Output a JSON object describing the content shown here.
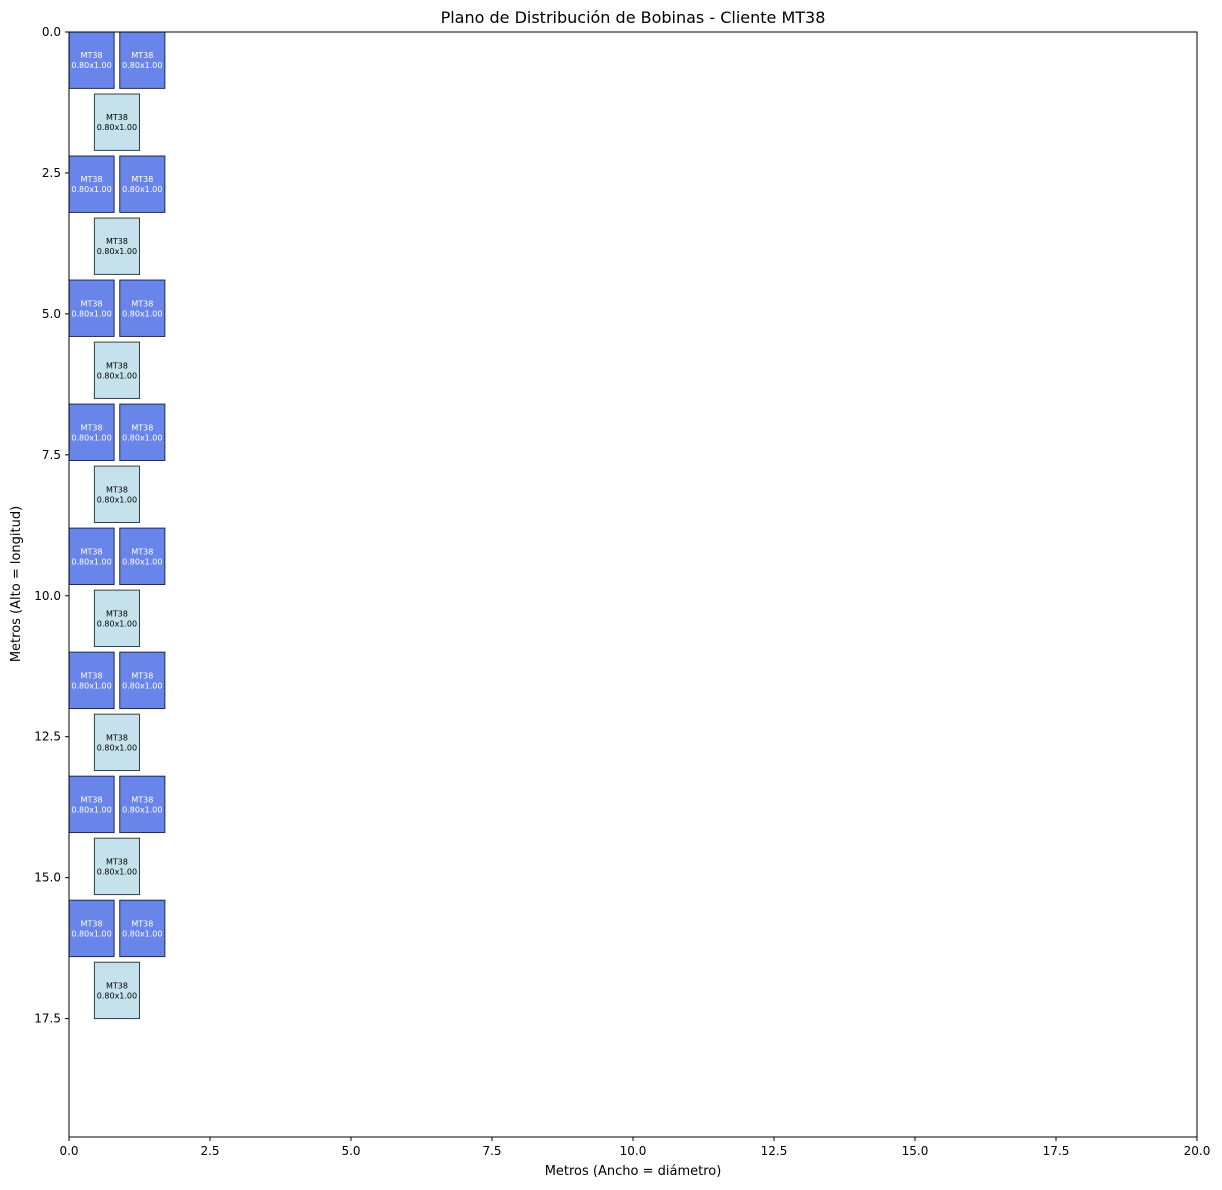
{
  "chart_data": {
    "type": "heatmap",
    "title": "Plano de Distribución de Bobinas - Cliente MT38",
    "xlabel": "Metros (Ancho = diámetro)",
    "ylabel": "Metros (Alto = longitud)",
    "xlim": [
      0,
      20
    ],
    "ylim": [
      19.6,
      0
    ],
    "y_inverted": true,
    "grid": false,
    "xticks": [
      "0.0",
      "2.5",
      "5.0",
      "7.5",
      "10.0",
      "12.5",
      "15.0",
      "17.5",
      "20.0"
    ],
    "yticks": [
      "0.0",
      "2.5",
      "5.0",
      "7.5",
      "10.0",
      "12.5",
      "15.0",
      "17.5"
    ],
    "colors": {
      "pair_fill": "#6985e9",
      "single_fill": "#c5e2ec",
      "pair_text": "#ffffff",
      "single_text": "#000000"
    },
    "rectangles": [
      {
        "x": 0.0,
        "y": 0.0,
        "w": 0.8,
        "h": 1.0,
        "style": "pair",
        "label1": "MT38",
        "label2": "0.80x1.00"
      },
      {
        "x": 0.9,
        "y": 0.0,
        "w": 0.8,
        "h": 1.0,
        "style": "pair",
        "label1": "MT38",
        "label2": "0.80x1.00"
      },
      {
        "x": 0.45,
        "y": 1.1,
        "w": 0.8,
        "h": 1.0,
        "style": "single",
        "label1": "MT38",
        "label2": "0.80x1.00"
      },
      {
        "x": 0.0,
        "y": 2.2,
        "w": 0.8,
        "h": 1.0,
        "style": "pair",
        "label1": "MT38",
        "label2": "0.80x1.00"
      },
      {
        "x": 0.9,
        "y": 2.2,
        "w": 0.8,
        "h": 1.0,
        "style": "pair",
        "label1": "MT38",
        "label2": "0.80x1.00"
      },
      {
        "x": 0.45,
        "y": 3.3,
        "w": 0.8,
        "h": 1.0,
        "style": "single",
        "label1": "MT38",
        "label2": "0.80x1.00"
      },
      {
        "x": 0.0,
        "y": 4.4,
        "w": 0.8,
        "h": 1.0,
        "style": "pair",
        "label1": "MT38",
        "label2": "0.80x1.00"
      },
      {
        "x": 0.9,
        "y": 4.4,
        "w": 0.8,
        "h": 1.0,
        "style": "pair",
        "label1": "MT38",
        "label2": "0.80x1.00"
      },
      {
        "x": 0.45,
        "y": 5.5,
        "w": 0.8,
        "h": 1.0,
        "style": "single",
        "label1": "MT38",
        "label2": "0.80x1.00"
      },
      {
        "x": 0.0,
        "y": 6.6,
        "w": 0.8,
        "h": 1.0,
        "style": "pair",
        "label1": "MT38",
        "label2": "0.80x1.00"
      },
      {
        "x": 0.9,
        "y": 6.6,
        "w": 0.8,
        "h": 1.0,
        "style": "pair",
        "label1": "MT38",
        "label2": "0.80x1.00"
      },
      {
        "x": 0.45,
        "y": 7.7,
        "w": 0.8,
        "h": 1.0,
        "style": "single",
        "label1": "MT38",
        "label2": "0.80x1.00"
      },
      {
        "x": 0.0,
        "y": 8.8,
        "w": 0.8,
        "h": 1.0,
        "style": "pair",
        "label1": "MT38",
        "label2": "0.80x1.00"
      },
      {
        "x": 0.9,
        "y": 8.8,
        "w": 0.8,
        "h": 1.0,
        "style": "pair",
        "label1": "MT38",
        "label2": "0.80x1.00"
      },
      {
        "x": 0.45,
        "y": 9.9,
        "w": 0.8,
        "h": 1.0,
        "style": "single",
        "label1": "MT38",
        "label2": "0.80x1.00"
      },
      {
        "x": 0.0,
        "y": 11.0,
        "w": 0.8,
        "h": 1.0,
        "style": "pair",
        "label1": "MT38",
        "label2": "0.80x1.00"
      },
      {
        "x": 0.9,
        "y": 11.0,
        "w": 0.8,
        "h": 1.0,
        "style": "pair",
        "label1": "MT38",
        "label2": "0.80x1.00"
      },
      {
        "x": 0.45,
        "y": 12.1,
        "w": 0.8,
        "h": 1.0,
        "style": "single",
        "label1": "MT38",
        "label2": "0.80x1.00"
      },
      {
        "x": 0.0,
        "y": 13.2,
        "w": 0.8,
        "h": 1.0,
        "style": "pair",
        "label1": "MT38",
        "label2": "0.80x1.00"
      },
      {
        "x": 0.9,
        "y": 13.2,
        "w": 0.8,
        "h": 1.0,
        "style": "pair",
        "label1": "MT38",
        "label2": "0.80x1.00"
      },
      {
        "x": 0.45,
        "y": 14.3,
        "w": 0.8,
        "h": 1.0,
        "style": "single",
        "label1": "MT38",
        "label2": "0.80x1.00"
      },
      {
        "x": 0.0,
        "y": 15.4,
        "w": 0.8,
        "h": 1.0,
        "style": "pair",
        "label1": "MT38",
        "label2": "0.80x1.00"
      },
      {
        "x": 0.9,
        "y": 15.4,
        "w": 0.8,
        "h": 1.0,
        "style": "pair",
        "label1": "MT38",
        "label2": "0.80x1.00"
      },
      {
        "x": 0.45,
        "y": 16.5,
        "w": 0.8,
        "h": 1.0,
        "style": "single",
        "label1": "MT38",
        "label2": "0.80x1.00"
      }
    ]
  }
}
